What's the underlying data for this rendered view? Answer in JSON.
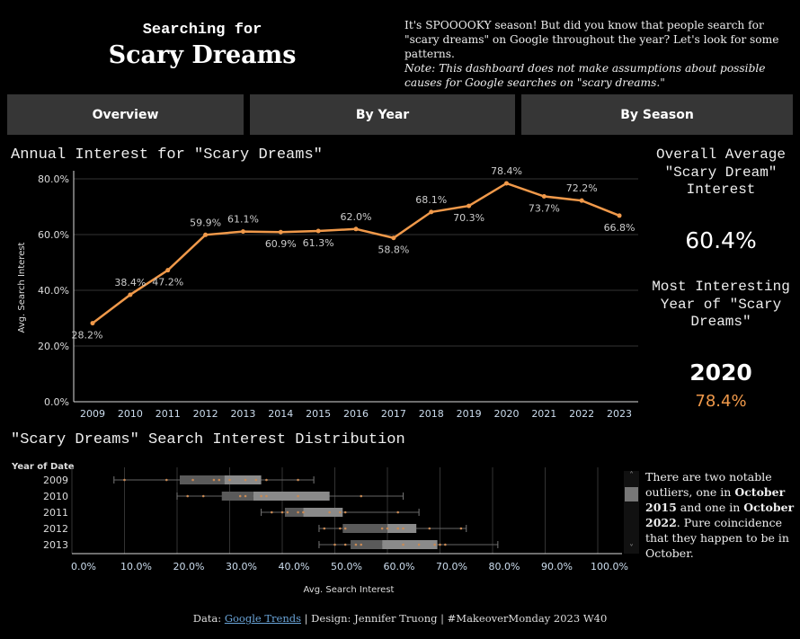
{
  "header": {
    "subtitle": "Searching for",
    "title": "Scary Dreams",
    "intro": "It's SPOOOOKY season! But did you know that people search for \"scary dreams\" on Google throughout the year? Let's look for some patterns.",
    "note": "Note: This dashboard does not make assumptions about possible causes for Google searches on \"scary dreams.\""
  },
  "tabs": [
    {
      "label": "Overview"
    },
    {
      "label": "By Year"
    },
    {
      "label": "By Season"
    }
  ],
  "colors": {
    "accent": "#f0994a",
    "tab": "#363636",
    "box_dark": "#5a5a5a",
    "box_light": "#8a8a8a"
  },
  "right_panel": {
    "avg_label": "Overall Average \"Scary Dream\" Interest",
    "avg_value": "60.4%",
    "top_label": "Most Interesting Year of \"Scary Dreams\"",
    "top_year": "2020",
    "top_value": "78.4%"
  },
  "chart_data": [
    {
      "type": "line",
      "title": "Annual Interest for \"Scary Dreams\"",
      "ylabel": "Avg. Search Interest",
      "xlabel": "",
      "ylim": [
        0,
        80
      ],
      "yticks": [
        "0.0%",
        "20.0%",
        "40.0%",
        "60.0%",
        "80.0%"
      ],
      "x": [
        "2009",
        "2010",
        "2011",
        "2012",
        "2013",
        "2014",
        "2015",
        "2016",
        "2017",
        "2018",
        "2019",
        "2020",
        "2021",
        "2022",
        "2023"
      ],
      "values": [
        28.2,
        38.4,
        47.2,
        59.9,
        61.1,
        60.9,
        61.3,
        62.0,
        58.8,
        68.1,
        70.3,
        78.4,
        73.7,
        72.2,
        66.8
      ],
      "labels": [
        "28.2%",
        "38.4%",
        "47.2%",
        "59.9%",
        "61.1%",
        "60.9%",
        "61.3%",
        "62.0%",
        "58.8%",
        "68.1%",
        "70.3%",
        "78.4%",
        "73.7%",
        "72.2%",
        "66.8%"
      ]
    },
    {
      "type": "box",
      "title": "\"Scary Dreams\" Search Interest Distribution",
      "ylabel": "Year of Date",
      "xlabel": "Avg. Search Interest",
      "xlim": [
        0,
        100
      ],
      "xticks": [
        "0.0%",
        "10.0%",
        "20.0%",
        "30.0%",
        "40.0%",
        "50.0%",
        "60.0%",
        "70.0%",
        "80.0%",
        "90.0%",
        "100.0%"
      ],
      "rows": [
        {
          "year": "2009",
          "min": 8,
          "q1": 20.5,
          "median": 29,
          "q3": 36,
          "max": 46,
          "points": [
            10,
            18,
            23,
            27,
            28,
            30,
            33,
            35,
            37,
            43
          ]
        },
        {
          "year": "2010",
          "min": 20,
          "q1": 28.5,
          "median": 34.5,
          "q3": 49,
          "max": 63,
          "points": [
            22,
            25,
            32,
            33,
            36,
            37,
            43,
            55
          ]
        },
        {
          "year": "2011",
          "min": 36,
          "q1": 40.5,
          "median": 44,
          "q3": 51.5,
          "max": 66,
          "points": [
            38,
            40,
            41,
            43,
            44,
            49,
            51,
            52,
            62
          ]
        },
        {
          "year": "2012",
          "min": 47,
          "q1": 51.5,
          "median": 60,
          "q3": 65.5,
          "max": 75,
          "points": [
            48,
            51,
            52,
            59,
            60,
            62,
            63,
            68,
            74
          ]
        },
        {
          "year": "2013",
          "min": 47,
          "q1": 53,
          "median": 59,
          "q3": 69.5,
          "max": 81,
          "points": [
            50,
            52,
            54,
            55,
            63,
            66,
            69,
            70,
            71
          ]
        }
      ]
    }
  ],
  "outlier_note": {
    "p1": "There are two notable outliers, one in ",
    "b1": "October 2015",
    "p2": " and one in ",
    "b2": "October 2022",
    "p3": ". Pure coincidence that they happen to be in October."
  },
  "footer": {
    "data_label": "Data: ",
    "link": "Google Trends",
    "rest": " | Design: Jennifer Truong | #MakeoverMonday 2023 W40"
  }
}
